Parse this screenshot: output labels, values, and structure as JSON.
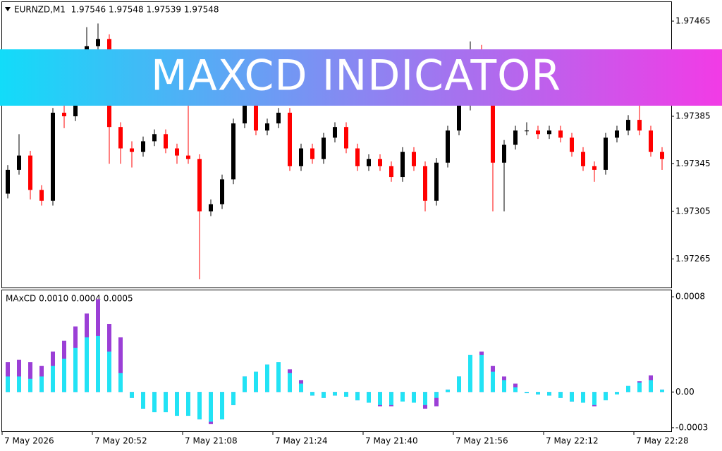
{
  "banner": "MAXCD INDICATOR",
  "chart_data": [
    {
      "type": "candlestick",
      "title": "EURNZD,M1  1.97546 1.97548 1.97539 1.97548",
      "up_color": "#000000",
      "down_color": "#ff0000",
      "ylim": [
        1.97241,
        1.97481
      ],
      "yticks": [
        1.97465,
        1.97385,
        1.97345,
        1.97305,
        1.97265
      ],
      "candles": [
        [
          1.9732,
          1.97344,
          1.97316,
          1.9734
        ],
        [
          1.9734,
          1.9737,
          1.97336,
          1.97352
        ],
        [
          1.97352,
          1.97356,
          1.97315,
          1.97323
        ],
        [
          1.97323,
          1.97327,
          1.9731,
          1.97314
        ],
        [
          1.97314,
          1.97392,
          1.9731,
          1.97388
        ],
        [
          1.97388,
          1.974,
          1.97375,
          1.97385
        ],
        [
          1.97385,
          1.97427,
          1.97381,
          1.97423
        ],
        [
          1.97423,
          1.9746,
          1.97419,
          1.97444
        ],
        [
          1.97444,
          1.97463,
          1.9744,
          1.9745
        ],
        [
          1.9745,
          1.97454,
          1.97345,
          1.97376
        ],
        [
          1.97376,
          1.9738,
          1.97345,
          1.97358
        ],
        [
          1.97358,
          1.97364,
          1.97342,
          1.97355
        ],
        [
          1.97355,
          1.97368,
          1.97351,
          1.97364
        ],
        [
          1.97364,
          1.97374,
          1.9736,
          1.9737
        ],
        [
          1.9737,
          1.97374,
          1.97354,
          1.97358
        ],
        [
          1.97358,
          1.97362,
          1.97345,
          1.97352
        ],
        [
          1.97352,
          1.97394,
          1.97345,
          1.97349
        ],
        [
          1.97349,
          1.97353,
          1.97248,
          1.97305
        ],
        [
          1.97305,
          1.97315,
          1.97301,
          1.97311
        ],
        [
          1.97311,
          1.97336,
          1.97307,
          1.97332
        ],
        [
          1.97332,
          1.97383,
          1.97328,
          1.97379
        ],
        [
          1.97379,
          1.9742,
          1.97375,
          1.97394
        ],
        [
          1.97394,
          1.97398,
          1.97369,
          1.97373
        ],
        [
          1.97373,
          1.97383,
          1.97369,
          1.97379
        ],
        [
          1.97379,
          1.97392,
          1.97375,
          1.97388
        ],
        [
          1.97388,
          1.97392,
          1.97339,
          1.97343
        ],
        [
          1.97343,
          1.97362,
          1.97339,
          1.97358
        ],
        [
          1.97358,
          1.97362,
          1.97345,
          1.97349
        ],
        [
          1.97349,
          1.97371,
          1.97345,
          1.97367
        ],
        [
          1.97367,
          1.9738,
          1.97363,
          1.97376
        ],
        [
          1.97376,
          1.9738,
          1.97354,
          1.97358
        ],
        [
          1.97358,
          1.97362,
          1.97339,
          1.97343
        ],
        [
          1.97343,
          1.97353,
          1.97339,
          1.97349
        ],
        [
          1.97349,
          1.97353,
          1.97339,
          1.97343
        ],
        [
          1.97343,
          1.97347,
          1.9733,
          1.97334
        ],
        [
          1.97334,
          1.97359,
          1.9733,
          1.97355
        ],
        [
          1.97355,
          1.97359,
          1.97339,
          1.97343
        ],
        [
          1.97343,
          1.97347,
          1.97305,
          1.97314
        ],
        [
          1.97314,
          1.9735,
          1.9731,
          1.97346
        ],
        [
          1.97346,
          1.97377,
          1.97342,
          1.97373
        ],
        [
          1.97373,
          1.97398,
          1.97369,
          1.97394
        ],
        [
          1.97394,
          1.97448,
          1.9739,
          1.97441
        ],
        [
          1.97441,
          1.97445,
          1.9741,
          1.97435
        ],
        [
          1.97435,
          1.97439,
          1.97305,
          1.97346
        ],
        [
          1.97346,
          1.97365,
          1.97305,
          1.97361
        ],
        [
          1.97361,
          1.97377,
          1.97357,
          1.97373
        ],
        [
          1.97373,
          1.9738,
          1.97369,
          1.97373
        ],
        [
          1.97373,
          1.97377,
          1.97366,
          1.9737
        ],
        [
          1.9737,
          1.97377,
          1.97366,
          1.97373
        ],
        [
          1.97373,
          1.97377,
          1.97363,
          1.97367
        ],
        [
          1.97367,
          1.97371,
          1.97351,
          1.97355
        ],
        [
          1.97355,
          1.97359,
          1.97339,
          1.97343
        ],
        [
          1.97343,
          1.97347,
          1.9733,
          1.9734
        ],
        [
          1.9734,
          1.97371,
          1.97336,
          1.97367
        ],
        [
          1.97367,
          1.97377,
          1.97363,
          1.97373
        ],
        [
          1.97373,
          1.97386,
          1.97369,
          1.97382
        ],
        [
          1.97382,
          1.97395,
          1.97369,
          1.97373
        ],
        [
          1.97373,
          1.97377,
          1.97351,
          1.97355
        ],
        [
          1.97355,
          1.97359,
          1.9734,
          1.97349
        ]
      ]
    },
    {
      "type": "histogram",
      "title": "MAxCD 0.0010 0.0004 0.0005",
      "ylim": [
        -0.00033,
        0.00086
      ],
      "yticks": [
        0.0008,
        {
          "value": 0,
          "label": "0.00"
        },
        -0.0003
      ],
      "x_labels": [
        "7 May 2026",
        "7 May 20:52",
        "7 May 21:08",
        "7 May 21:24",
        "7 May 21:40",
        "7 May 21:56",
        "7 May 22:12",
        "7 May 22:28"
      ],
      "series": [
        {
          "color": "#9b3fd6",
          "values": [
            0.00025,
            0.00027,
            0.00025,
            0.00022,
            0.00034,
            0.00043,
            0.00055,
            0.00066,
            0.00078,
            0.00057,
            0.00046,
            -5e-05,
            -0.00014,
            -0.00017,
            -0.00017,
            -0.0002,
            -0.0002,
            -0.00023,
            -0.00027,
            -0.00023,
            -0.00011,
            0.00013,
            0.00017,
            0.00023,
            0.00025,
            0.00019,
            0.0001,
            -3e-05,
            -5e-05,
            -3e-05,
            -4e-05,
            -7e-05,
            -9e-05,
            -0.00012,
            -0.00012,
            -5e-05,
            -8e-05,
            -0.00014,
            -0.00012,
            2e-05,
            0.00013,
            0.00031,
            0.00034,
            0.00022,
            0.00013,
            7e-05,
            -1e-05,
            -2e-05,
            -3e-05,
            -5e-05,
            -8e-05,
            -9e-05,
            -0.00012,
            -6e-05,
            -1e-05,
            5e-05,
            9e-05,
            0.00014,
            2e-05
          ]
        },
        {
          "color": "#22e3f5",
          "values": [
            0.00013,
            0.00013,
            0.00011,
            0.00013,
            0.00022,
            0.00028,
            0.00037,
            0.00046,
            0.00047,
            0.00034,
            0.00016,
            -5e-05,
            -0.00014,
            -0.00017,
            -0.00017,
            -0.0002,
            -0.0002,
            -0.00023,
            -0.00025,
            -0.00023,
            -0.00011,
            0.00013,
            0.00017,
            0.00023,
            0.00025,
            0.00016,
            7e-05,
            -3e-05,
            -5e-05,
            -3e-05,
            -4e-05,
            -7e-05,
            -9e-05,
            -0.00011,
            -0.00011,
            -8e-05,
            -9e-05,
            -0.00011,
            -5e-05,
            2e-05,
            0.00013,
            0.00031,
            0.00031,
            0.00017,
            0.0001,
            4e-05,
            -1e-05,
            -2e-05,
            -3e-05,
            -5e-05,
            -8e-05,
            -9e-05,
            -0.00011,
            -7e-05,
            -2e-05,
            5e-05,
            8e-05,
            0.0001,
            2e-05
          ]
        }
      ]
    }
  ]
}
